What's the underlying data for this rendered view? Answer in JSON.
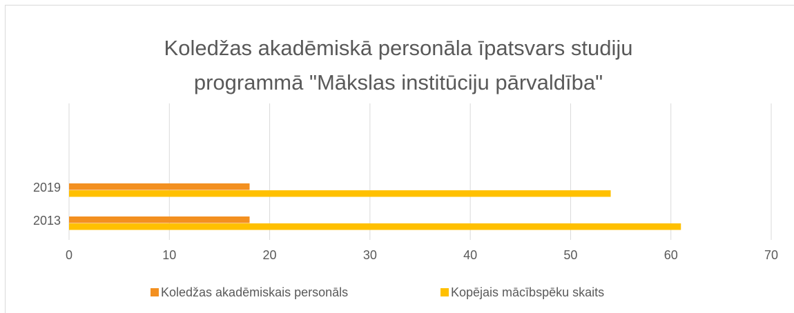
{
  "chart_data": {
    "type": "hbar",
    "title": [
      "Koledžas akadēmiskā personāla īpatsvars studiju",
      "programmā \"Mākslas institūciju pārvaldība\""
    ],
    "categories": [
      "2013",
      "2019"
    ],
    "series": [
      {
        "name": "Koledžas akadēmiskais personāls",
        "color": "#f39020",
        "values": [
          18,
          18
        ]
      },
      {
        "name": "Kopējais mācībspēku skaits",
        "color": "#ffc000",
        "values": [
          61,
          54
        ]
      }
    ],
    "xlim": [
      0,
      70
    ],
    "xticks": [
      0,
      10,
      20,
      30,
      40,
      50,
      60,
      70
    ],
    "grid": true,
    "legend": "bottom"
  }
}
